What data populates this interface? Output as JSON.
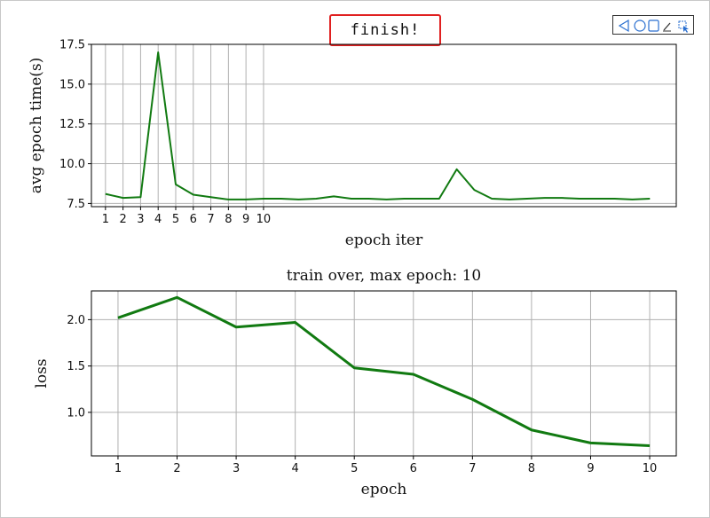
{
  "status": {
    "text": "finish!"
  },
  "toolbar": {
    "icons": [
      "back-triangle-icon",
      "circle-icon",
      "square-icon",
      "edit-pen-icon",
      "select-cursor-icon"
    ]
  },
  "colors": {
    "line": "#117a11",
    "grid": "#b0b0b0",
    "axes": "#000000",
    "status_border": "#e02020"
  },
  "chart_data": [
    {
      "type": "line",
      "title": "",
      "xlabel": "epoch iter",
      "ylabel": "avg epoch time(s)",
      "x": [
        1,
        2,
        3,
        4,
        5,
        6,
        7,
        8,
        9,
        10,
        11,
        12,
        13,
        14,
        15,
        16,
        17,
        18,
        19,
        20,
        21,
        22,
        23,
        24,
        25,
        26,
        27,
        28,
        29,
        30,
        31,
        32
      ],
      "x_tick_labels": [
        "1",
        "2",
        "3",
        "4",
        "5",
        "6",
        "7",
        "8",
        "9",
        "10"
      ],
      "xlim": [
        0.2,
        33.5
      ],
      "y_ticks": [
        7.5,
        10.0,
        12.5,
        15.0,
        17.5
      ],
      "y_tick_labels": [
        "7.5",
        "10.0",
        "12.5",
        "15.0",
        "17.5"
      ],
      "ylim": [
        7.3,
        17.5
      ],
      "grid": true,
      "series": [
        {
          "values": [
            8.1,
            7.85,
            7.9,
            17.0,
            8.7,
            8.05,
            7.9,
            7.75,
            7.75,
            7.8,
            7.8,
            7.75,
            7.8,
            7.95,
            7.8,
            7.8,
            7.75,
            7.8,
            7.8,
            7.8,
            9.65,
            8.35,
            7.8,
            7.75,
            7.8,
            7.85,
            7.85,
            7.8,
            7.8,
            7.8,
            7.75,
            7.8
          ]
        }
      ]
    },
    {
      "type": "line",
      "title": "train over, max epoch: 10",
      "xlabel": "epoch",
      "ylabel": "loss",
      "x": [
        1,
        2,
        3,
        4,
        5,
        6,
        7,
        8,
        9,
        10
      ],
      "x_tick_labels": [
        "1",
        "2",
        "3",
        "4",
        "5",
        "6",
        "7",
        "8",
        "9",
        "10"
      ],
      "xlim": [
        0.55,
        10.45
      ],
      "y_ticks": [
        1.0,
        1.5,
        2.0
      ],
      "y_tick_labels": [
        "1.0",
        "1.5",
        "2.0"
      ],
      "ylim": [
        0.53,
        2.31
      ],
      "grid": true,
      "series": [
        {
          "values": [
            2.02,
            2.24,
            1.92,
            1.97,
            1.48,
            1.41,
            1.14,
            0.81,
            0.67,
            0.64
          ]
        }
      ]
    }
  ]
}
